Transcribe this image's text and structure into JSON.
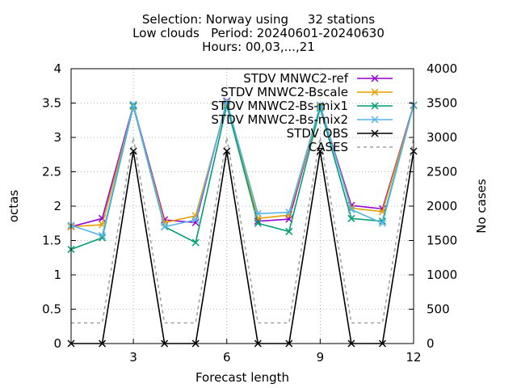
{
  "chart_data": {
    "type": "line",
    "title_lines": [
      "Selection: Norway using     32 stations",
      "Low clouds   Period: 20240601-20240630",
      "Hours: 00,03,...,21"
    ],
    "xlabel": "Forecast length",
    "ylabel": "octas",
    "y2label": "No cases",
    "xlim": [
      1,
      12
    ],
    "ylim": [
      0,
      4
    ],
    "y2lim": [
      0,
      4000
    ],
    "xticks": [
      3,
      6,
      9,
      12
    ],
    "yticks": [
      "0",
      "0.5",
      "1",
      "1.5",
      "2",
      "2.5",
      "3",
      "3.5",
      "4"
    ],
    "y2ticks": [
      "0",
      "500",
      "1000",
      "1500",
      "2000",
      "2500",
      "3000",
      "3500",
      "4000"
    ],
    "grid": true,
    "legend_position": "top-right",
    "x": [
      1,
      2,
      3,
      4,
      5,
      6,
      7,
      8,
      9,
      10,
      11,
      12
    ],
    "series": [
      {
        "name": "STDV MNWC2-ref",
        "color": "#9400d3",
        "axis": "y1",
        "marker": "x",
        "values": [
          1.7,
          1.82,
          3.47,
          1.8,
          1.76,
          3.53,
          1.78,
          1.81,
          3.46,
          2.01,
          1.96,
          3.47
        ]
      },
      {
        "name": "STDV MNWC2-Bscale",
        "color": "#e69f00",
        "axis": "y1",
        "marker": "x",
        "values": [
          1.7,
          1.73,
          3.45,
          1.76,
          1.86,
          3.5,
          1.82,
          1.87,
          3.45,
          1.97,
          1.92,
          3.46
        ]
      },
      {
        "name": "STDV MNWC2-Bs-mix1",
        "color": "#009e73",
        "axis": "y1",
        "marker": "x",
        "values": [
          1.37,
          1.54,
          3.46,
          1.7,
          1.47,
          3.47,
          1.75,
          1.63,
          3.43,
          1.82,
          1.78,
          3.47
        ]
      },
      {
        "name": "STDV MNWC2-Bs-mix2",
        "color": "#56b4e9",
        "axis": "y1",
        "marker": "x",
        "values": [
          1.72,
          1.57,
          3.48,
          1.7,
          1.8,
          3.52,
          1.89,
          1.91,
          3.47,
          1.95,
          1.75,
          3.47
        ]
      },
      {
        "name": "STDV OBS",
        "color": "#000000",
        "axis": "y1",
        "marker": "x",
        "values": [
          0,
          0,
          2.8,
          0,
          0,
          2.8,
          0,
          0,
          2.8,
          0,
          0,
          2.8
        ]
      },
      {
        "name": "CASES",
        "color": "#a0a0a0",
        "axis": "y2",
        "marker": "none",
        "dash": true,
        "values": [
          300,
          300,
          3000,
          300,
          300,
          3000,
          300,
          300,
          3000,
          300,
          300,
          3000
        ]
      }
    ]
  }
}
